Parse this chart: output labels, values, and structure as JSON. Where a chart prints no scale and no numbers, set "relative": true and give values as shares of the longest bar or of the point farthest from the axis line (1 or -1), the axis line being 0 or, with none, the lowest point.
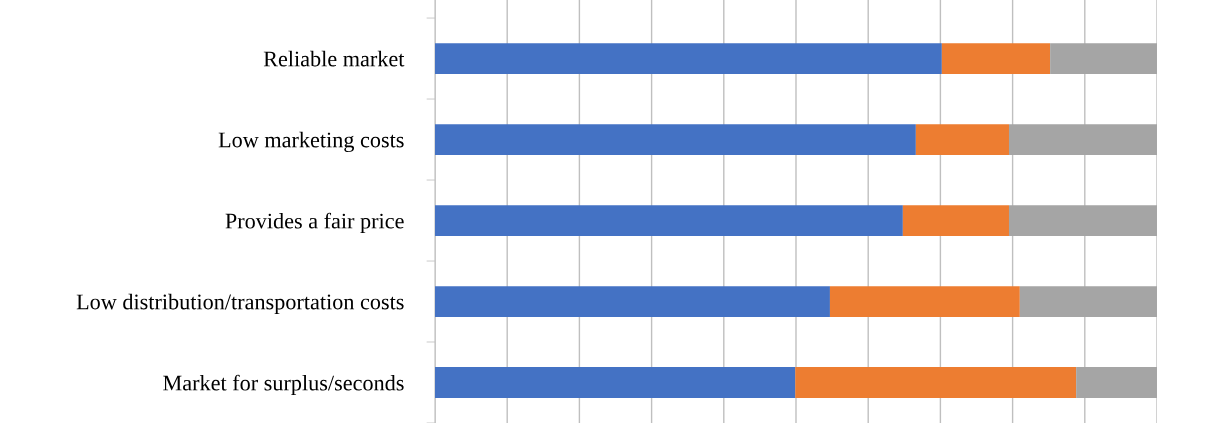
{
  "chart_data": {
    "type": "bar",
    "orientation": "horizontal",
    "stacked": true,
    "relative": true,
    "grid": "x",
    "categories": [
      "Reliable market",
      "Low marketing costs",
      "Provides a fair price",
      "Low distribution/transportation costs",
      "Market for surplus/seconds"
    ],
    "series": [
      {
        "color": "#4472c4",
        "values": [
          0.702,
          0.666,
          0.648,
          0.547,
          0.499
        ]
      },
      {
        "color": "#ed7d31",
        "values": [
          0.15,
          0.129,
          0.147,
          0.263,
          0.389
        ]
      },
      {
        "color": "#a5a5a5",
        "values": [
          0.148,
          0.205,
          0.205,
          0.19,
          0.112
        ]
      }
    ]
  }
}
